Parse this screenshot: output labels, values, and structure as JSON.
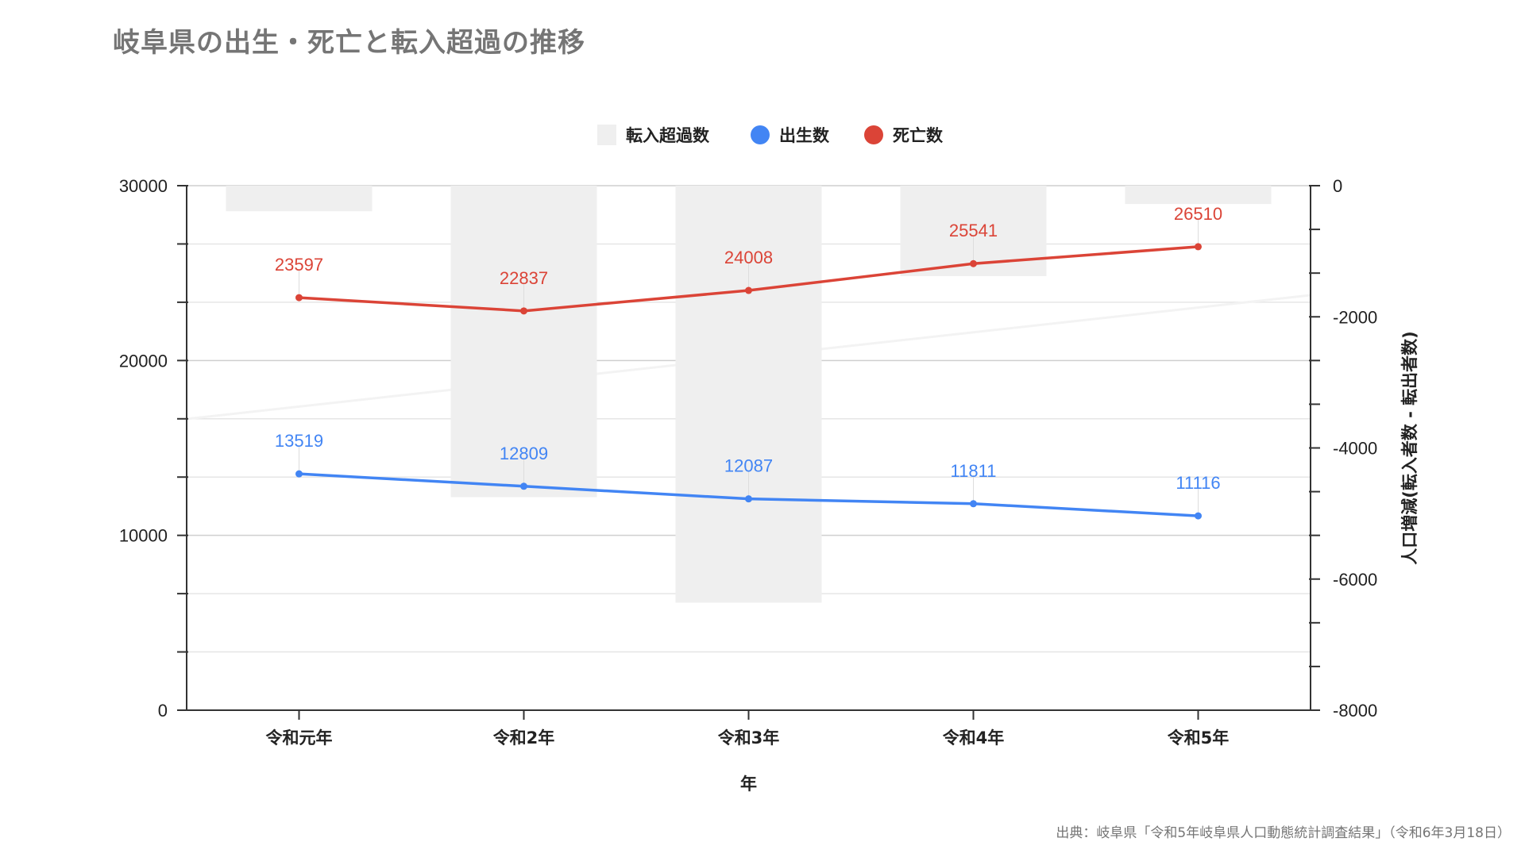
{
  "title": "岐阜県の出生・死亡と転入超過の推移",
  "source": "出典：岐阜県「令和5年岐阜県人口動態統計調査結果」（令和6年3月18日）",
  "chart_data": {
    "type": "bar+line",
    "categories": [
      "令和元年",
      "令和2年",
      "令和3年",
      "令和4年",
      "令和5年"
    ],
    "xlabel": "年",
    "ylabel": "",
    "ylabel_right": "人口増減(転入者数 - 転出者数)",
    "ylim": [
      0,
      30000
    ],
    "ylim_right": [
      -8000,
      0
    ],
    "yticks": [
      0,
      10000,
      20000,
      30000
    ],
    "yticks_right": [
      0,
      -2000,
      -4000,
      -6000,
      -8000
    ],
    "grid": true,
    "legend_position": "top",
    "bar_series": {
      "name": "転入超過数",
      "axis": "right",
      "color": "#efefef",
      "values": [
        -390,
        -4750,
        -6360,
        -1380,
        -280
      ]
    },
    "series": [
      {
        "name": "出生数",
        "axis": "left",
        "color": "#4285f4",
        "values": [
          13519,
          12809,
          12087,
          11811,
          11116
        ]
      },
      {
        "name": "死亡数",
        "axis": "left",
        "color": "#db4437",
        "values": [
          23597,
          22837,
          24008,
          25541,
          26510
        ]
      }
    ]
  }
}
